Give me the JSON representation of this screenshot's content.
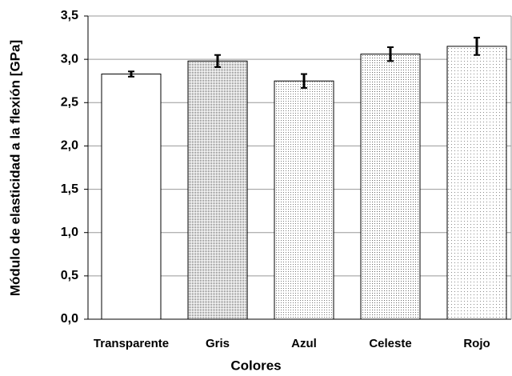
{
  "chart_data": {
    "type": "bar",
    "x_label": "Colores",
    "y_label": "Módulo de elasticidad a la flexión [GPa]",
    "categories": [
      "Transparente",
      "Gris",
      "Azul",
      "Celeste",
      "Rojo"
    ],
    "values": [
      2.83,
      2.98,
      2.75,
      3.06,
      3.15
    ],
    "errors": [
      0.03,
      0.07,
      0.08,
      0.08,
      0.1
    ],
    "colors": [
      "#ffffff",
      "#555555",
      "#777777",
      "#666666",
      "#8a8a8a"
    ],
    "ylim": [
      0,
      3.5
    ],
    "yticks": [
      {
        "value": 0,
        "label": "0,0"
      },
      {
        "value": 0.5,
        "label": "0,5"
      },
      {
        "value": 1,
        "label": "1,0"
      },
      {
        "value": 1.5,
        "label": "1,5"
      },
      {
        "value": 2,
        "label": "2,0"
      },
      {
        "value": 2.5,
        "label": "2,5"
      },
      {
        "value": 3,
        "label": "3,0"
      },
      {
        "value": 3.5,
        "label": "3,5"
      }
    ],
    "grid": true
  }
}
